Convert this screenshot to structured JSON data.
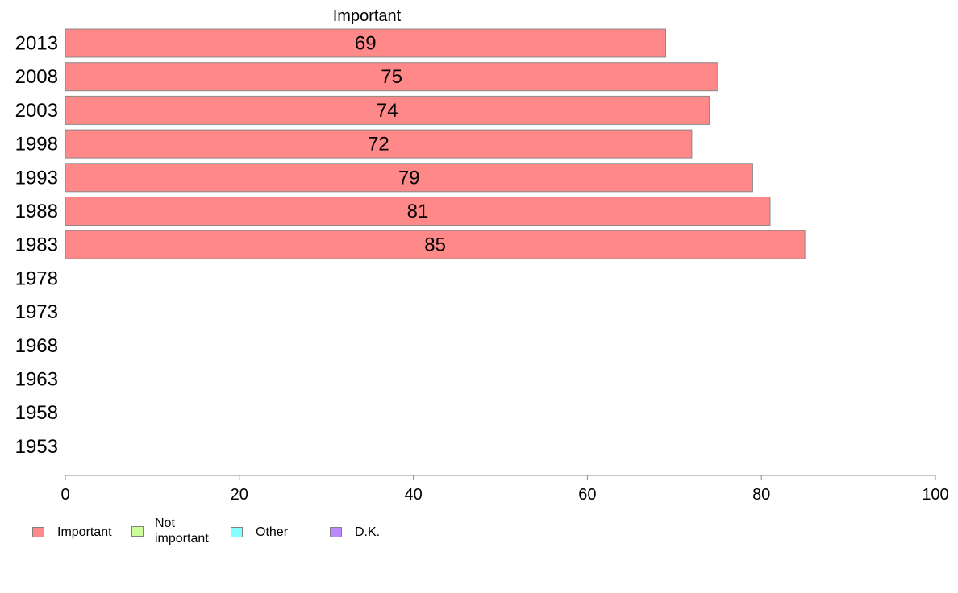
{
  "chart_data": {
    "type": "bar",
    "orientation": "horizontal",
    "series_header": "Important",
    "categories": [
      "2013",
      "2008",
      "2003",
      "1998",
      "1993",
      "1988",
      "1983",
      "1978",
      "1973",
      "1968",
      "1963",
      "1958",
      "1953"
    ],
    "series": [
      {
        "name": "Important",
        "color": "#ff8888",
        "values": [
          69,
          75,
          74,
          72,
          79,
          81,
          85,
          null,
          null,
          null,
          null,
          null,
          null
        ]
      }
    ],
    "xlim": [
      0,
      100
    ],
    "xticks": [
      "0",
      "20",
      "40",
      "60",
      "80",
      "100"
    ],
    "grid": false,
    "legend_position": "bottom-left",
    "legend": [
      {
        "label": "Important",
        "color": "#ff8888"
      },
      {
        "label": "Not important",
        "color": "#ccff99"
      },
      {
        "label": "Other",
        "color": "#88ffff"
      },
      {
        "label": "D.K.",
        "color": "#bb88ff"
      }
    ]
  }
}
